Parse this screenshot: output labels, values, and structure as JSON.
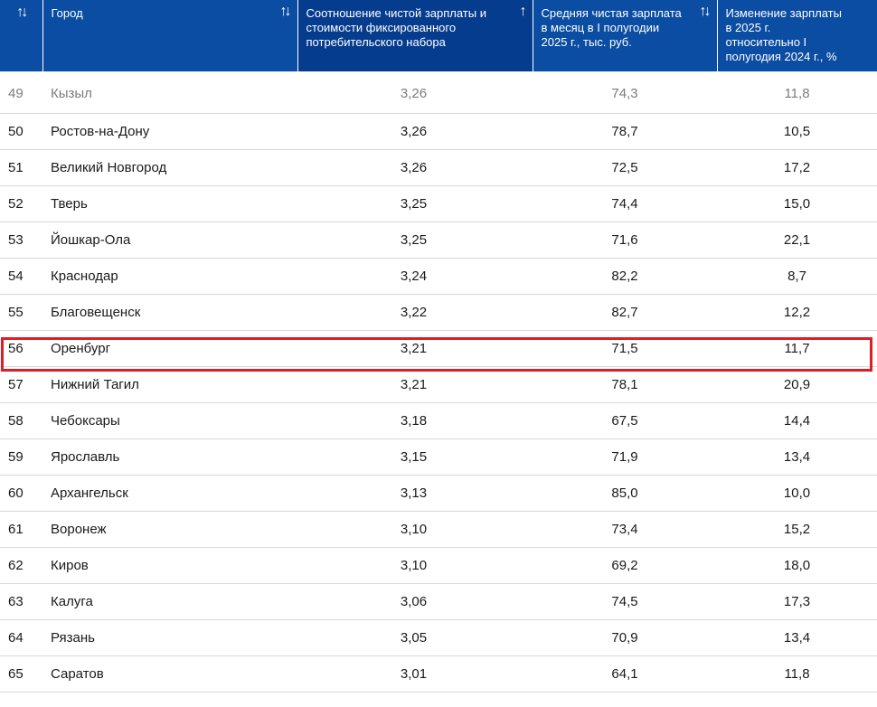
{
  "headers": {
    "rank": {
      "label": "",
      "sort_icon": "↑↓"
    },
    "city": {
      "label": "Город",
      "sort_icon": "↑↓"
    },
    "ratio": {
      "label": "Соотношение чистой зарплаты и стоимости фиксированного потребительского набора",
      "sort_icon": "↑"
    },
    "salary": {
      "label": "Средняя чистая зарплата в месяц в I полугодии 2025 г., тыс. руб.",
      "sort_icon": "↑↓"
    },
    "change": {
      "label": "Изменение зарплаты в 2025 г. относительно I полугодия 2024 г., %",
      "sort_icon": ""
    }
  },
  "rows": [
    {
      "rank": "49",
      "city": "Кызыл",
      "ratio": "3,26",
      "salary": "74,3",
      "change": "11,8"
    },
    {
      "rank": "50",
      "city": "Ростов-на-Дону",
      "ratio": "3,26",
      "salary": "78,7",
      "change": "10,5"
    },
    {
      "rank": "51",
      "city": "Великий Новгород",
      "ratio": "3,26",
      "salary": "72,5",
      "change": "17,2"
    },
    {
      "rank": "52",
      "city": "Тверь",
      "ratio": "3,25",
      "salary": "74,4",
      "change": "15,0"
    },
    {
      "rank": "53",
      "city": "Йошкар-Ола",
      "ratio": "3,25",
      "salary": "71,6",
      "change": "22,1"
    },
    {
      "rank": "54",
      "city": "Краснодар",
      "ratio": "3,24",
      "salary": "82,2",
      "change": "8,7"
    },
    {
      "rank": "55",
      "city": "Благовещенск",
      "ratio": "3,22",
      "salary": "82,7",
      "change": "12,2"
    },
    {
      "rank": "56",
      "city": "Оренбург",
      "ratio": "3,21",
      "salary": "71,5",
      "change": "11,7"
    },
    {
      "rank": "57",
      "city": "Нижний Тагил",
      "ratio": "3,21",
      "salary": "78,1",
      "change": "20,9"
    },
    {
      "rank": "58",
      "city": "Чебоксары",
      "ratio": "3,18",
      "salary": "67,5",
      "change": "14,4"
    },
    {
      "rank": "59",
      "city": "Ярославль",
      "ratio": "3,15",
      "salary": "71,9",
      "change": "13,4"
    },
    {
      "rank": "60",
      "city": "Архангельск",
      "ratio": "3,13",
      "salary": "85,0",
      "change": "10,0"
    },
    {
      "rank": "61",
      "city": "Воронеж",
      "ratio": "3,10",
      "salary": "73,4",
      "change": "15,2"
    },
    {
      "rank": "62",
      "city": "Киров",
      "ratio": "3,10",
      "salary": "69,2",
      "change": "18,0"
    },
    {
      "rank": "63",
      "city": "Калуга",
      "ratio": "3,06",
      "salary": "74,5",
      "change": "17,3"
    },
    {
      "rank": "64",
      "city": "Рязань",
      "ratio": "3,05",
      "salary": "70,9",
      "change": "13,4"
    },
    {
      "rank": "65",
      "city": "Саратов",
      "ratio": "3,01",
      "salary": "64,1",
      "change": "11,8"
    }
  ],
  "highlight_colors": {
    "header": "#0b4da2",
    "header_active": "#063c8e",
    "highlight_border": "#dc1e28"
  }
}
